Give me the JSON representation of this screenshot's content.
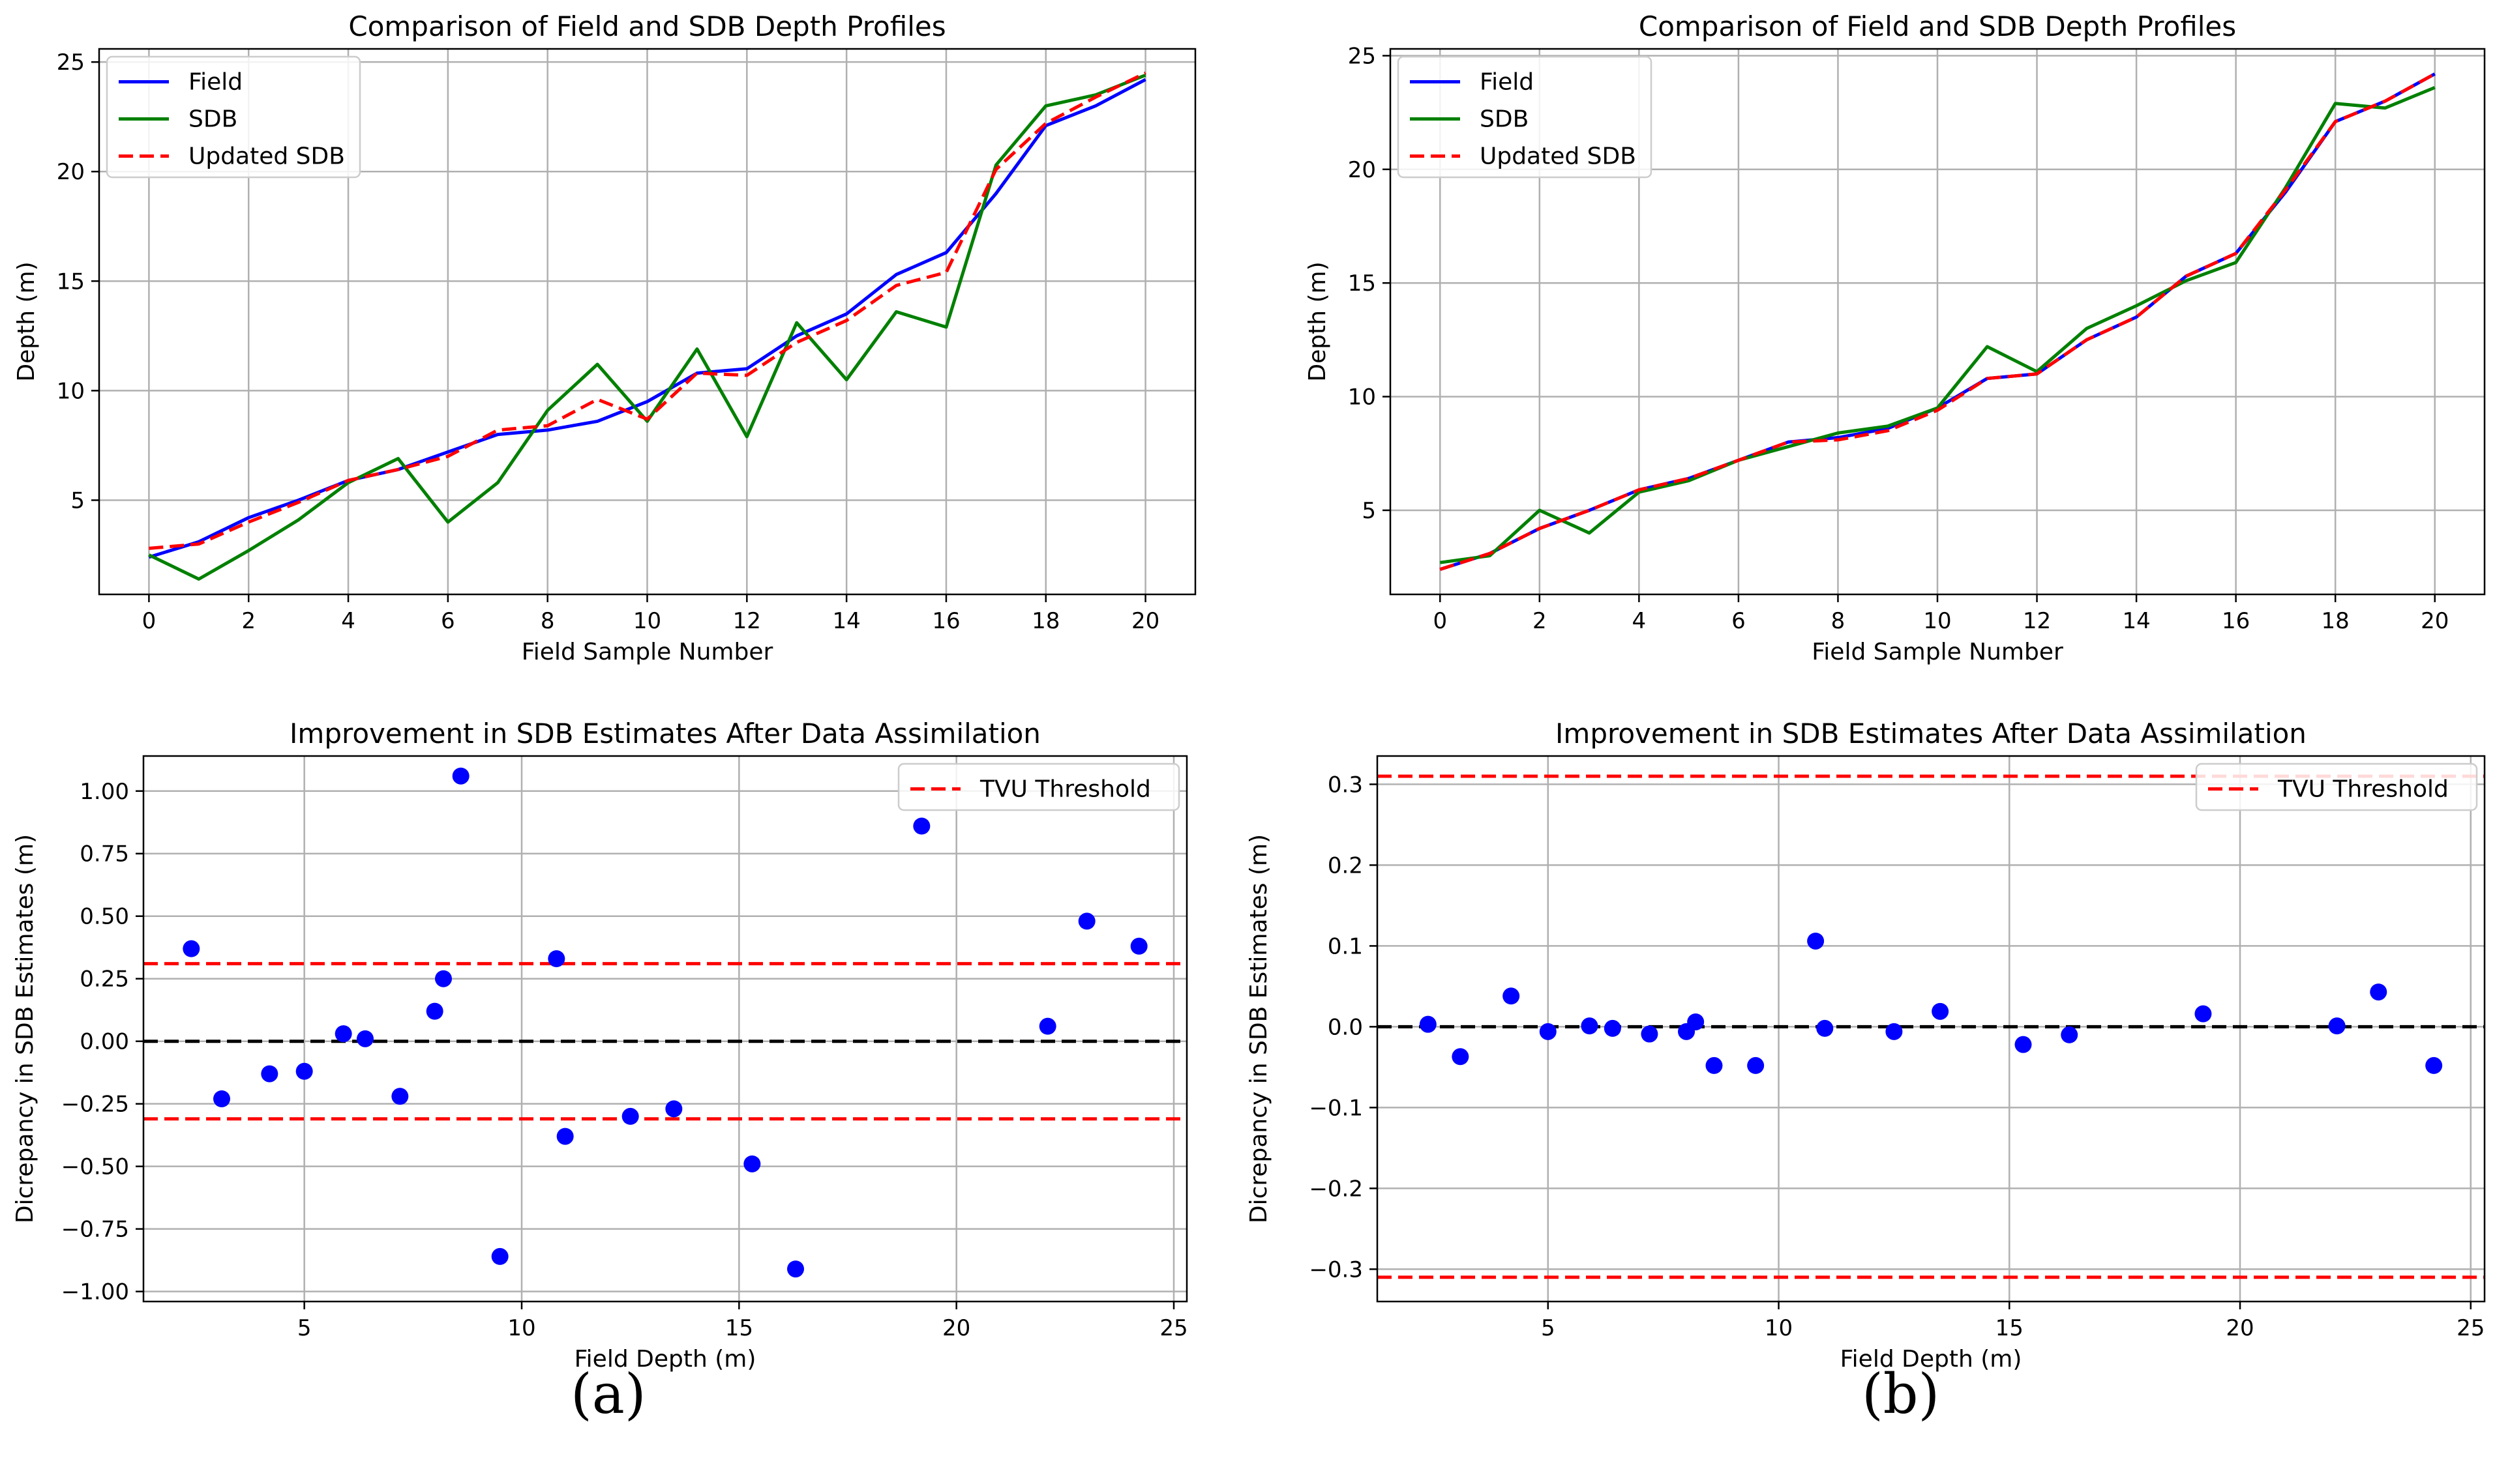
{
  "panel_labels": [
    "(a)",
    "(b)"
  ],
  "chart_data": [
    {
      "id": "a-top",
      "type": "line",
      "title": "Comparison of Field and SDB Depth Profiles",
      "xlabel": "Field Sample Number",
      "ylabel": "Depth (m)",
      "xlim": [
        -1,
        21
      ],
      "ylim": [
        0.7,
        25.6
      ],
      "xticks": [
        0,
        2,
        4,
        6,
        8,
        10,
        12,
        14,
        16,
        18,
        20
      ],
      "yticks": [
        5,
        10,
        15,
        20,
        25
      ],
      "grid": true,
      "legend": "top-left",
      "x": [
        0,
        1,
        2,
        3,
        4,
        5,
        6,
        7,
        8,
        9,
        10,
        11,
        12,
        13,
        14,
        15,
        16,
        17,
        18,
        19,
        20
      ],
      "series": [
        {
          "name": "Field",
          "color": "#0000ff",
          "dash": "solid",
          "values": [
            2.4,
            3.1,
            4.2,
            5.0,
            5.9,
            6.4,
            7.2,
            8.0,
            8.2,
            8.6,
            9.5,
            10.8,
            11.0,
            12.5,
            13.5,
            15.3,
            16.3,
            19.0,
            22.1,
            23.0,
            24.2
          ]
        },
        {
          "name": "SDB",
          "color": "#008000",
          "dash": "solid",
          "values": [
            2.5,
            1.4,
            2.7,
            4.1,
            5.8,
            6.9,
            4.0,
            5.8,
            9.1,
            11.2,
            8.6,
            11.9,
            7.9,
            13.1,
            10.5,
            13.6,
            12.9,
            20.3,
            23.0,
            23.5,
            24.4
          ]
        },
        {
          "name": "Updated SDB",
          "color": "#ff0000",
          "dash": "dashed",
          "values": [
            2.8,
            3.0,
            4.0,
            4.9,
            5.9,
            6.4,
            7.0,
            8.2,
            8.4,
            9.6,
            8.7,
            10.8,
            10.7,
            12.2,
            13.2,
            14.8,
            15.4,
            20.1,
            22.2,
            23.4,
            24.5
          ]
        }
      ]
    },
    {
      "id": "b-top",
      "type": "line",
      "title": "Comparison of Field and SDB Depth Profiles",
      "xlabel": "Field Sample Number",
      "ylabel": "Depth (m)",
      "xlim": [
        -1,
        21
      ],
      "ylim": [
        1.3,
        25.3
      ],
      "xticks": [
        0,
        2,
        4,
        6,
        8,
        10,
        12,
        14,
        16,
        18,
        20
      ],
      "yticks": [
        5,
        10,
        15,
        20,
        25
      ],
      "grid": true,
      "legend": "top-left",
      "x": [
        0,
        1,
        2,
        3,
        4,
        5,
        6,
        7,
        8,
        9,
        10,
        11,
        12,
        13,
        14,
        15,
        16,
        17,
        18,
        19,
        20
      ],
      "series": [
        {
          "name": "Field",
          "color": "#0000ff",
          "dash": "solid",
          "values": [
            2.4,
            3.1,
            4.2,
            5.0,
            5.9,
            6.4,
            7.2,
            8.0,
            8.2,
            8.6,
            9.5,
            10.8,
            11.0,
            12.5,
            13.5,
            15.3,
            16.3,
            19.0,
            22.1,
            23.0,
            24.2
          ]
        },
        {
          "name": "SDB",
          "color": "#008000",
          "dash": "solid",
          "values": [
            2.7,
            3.0,
            5.0,
            4.0,
            5.8,
            6.3,
            7.2,
            7.8,
            8.4,
            8.7,
            9.5,
            12.2,
            11.1,
            13.0,
            14.0,
            15.1,
            15.9,
            19.2,
            22.9,
            22.7,
            23.6
          ]
        },
        {
          "name": "Updated SDB",
          "color": "#ff0000",
          "dash": "dashed",
          "values": [
            2.4,
            3.1,
            4.2,
            5.0,
            5.9,
            6.4,
            7.2,
            8.0,
            8.1,
            8.5,
            9.4,
            10.8,
            11.0,
            12.5,
            13.5,
            15.3,
            16.3,
            19.1,
            22.1,
            23.0,
            24.2
          ]
        }
      ]
    },
    {
      "id": "a-bottom",
      "type": "scatter",
      "title": "Improvement in SDB Estimates After Data Assimilation",
      "xlabel": "Field Depth (m)",
      "ylabel": "Dicrepancy in SDB Estimates (m)",
      "xlim": [
        1.3,
        25.3
      ],
      "ylim": [
        -1.04,
        1.14
      ],
      "xticks": [
        5,
        10,
        15,
        20,
        25
      ],
      "yticks": [
        -1.0,
        -0.75,
        -0.5,
        -0.25,
        0.0,
        0.25,
        0.5,
        0.75,
        1.0
      ],
      "ytick_decimals": 2,
      "grid": true,
      "legend": "top-right",
      "hlines": [
        {
          "y": 0.0,
          "color": "#000000"
        },
        {
          "y": 0.31,
          "color": "#ff0000"
        },
        {
          "y": -0.31,
          "color": "#ff0000"
        }
      ],
      "legend_entries": [
        {
          "name": "TVU Threshold",
          "color": "#ff0000",
          "dash": "dashed"
        }
      ],
      "points": {
        "color": "#0000ff",
        "x": [
          2.4,
          3.1,
          4.2,
          5.0,
          5.9,
          6.4,
          7.2,
          8.0,
          8.2,
          8.6,
          9.5,
          10.8,
          11.0,
          12.5,
          13.5,
          15.3,
          16.3,
          19.2,
          22.1,
          23.0,
          24.2
        ],
        "y": [
          0.37,
          -0.23,
          -0.13,
          -0.12,
          0.03,
          0.01,
          -0.22,
          0.12,
          0.25,
          1.06,
          -0.86,
          0.33,
          -0.38,
          -0.3,
          -0.27,
          -0.49,
          -0.91,
          0.86,
          0.06,
          0.48,
          0.38
        ]
      }
    },
    {
      "id": "b-bottom",
      "type": "scatter",
      "title": "Improvement in SDB Estimates After Data Assimilation",
      "xlabel": "Field Depth (m)",
      "ylabel": "Dicrepancy in SDB Estimates (m)",
      "xlim": [
        1.3,
        25.3
      ],
      "ylim": [
        -0.34,
        0.335
      ],
      "xticks": [
        5,
        10,
        15,
        20,
        25
      ],
      "yticks": [
        -0.3,
        -0.2,
        -0.1,
        0.0,
        0.1,
        0.2,
        0.3
      ],
      "ytick_decimals": 1,
      "grid": true,
      "legend": "top-right",
      "hlines": [
        {
          "y": 0.0,
          "color": "#000000"
        },
        {
          "y": 0.31,
          "color": "#ff0000"
        },
        {
          "y": -0.31,
          "color": "#ff0000"
        }
      ],
      "legend_entries": [
        {
          "name": "TVU Threshold",
          "color": "#ff0000",
          "dash": "dashed"
        }
      ],
      "points": {
        "color": "#0000ff",
        "x": [
          2.4,
          3.1,
          4.2,
          5.0,
          5.9,
          6.4,
          7.2,
          8.0,
          8.2,
          8.6,
          9.5,
          10.8,
          11.0,
          12.5,
          13.5,
          15.3,
          16.3,
          19.2,
          22.1,
          23.0,
          24.2
        ],
        "y": [
          0.003,
          -0.037,
          0.038,
          -0.006,
          0.001,
          -0.002,
          -0.009,
          -0.006,
          0.006,
          -0.048,
          -0.048,
          0.106,
          -0.002,
          -0.006,
          0.019,
          -0.022,
          -0.01,
          0.016,
          0.001,
          0.043,
          -0.048
        ]
      }
    }
  ]
}
